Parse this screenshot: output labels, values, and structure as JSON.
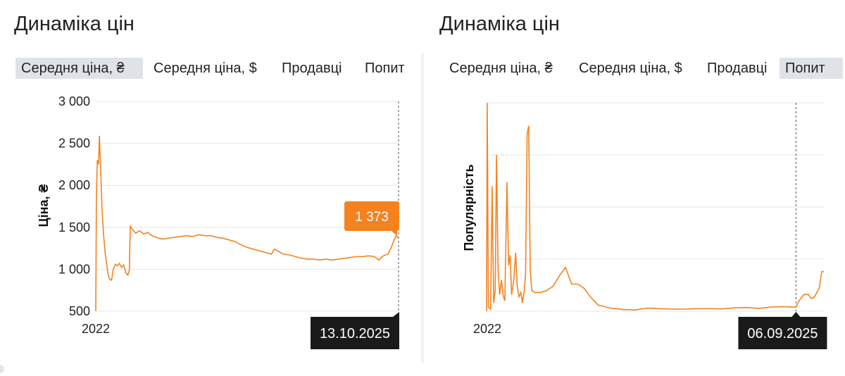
{
  "colors": {
    "line": "#f4821f",
    "tooltip_value_bg": "#f4821f",
    "tooltip_date_bg": "#1a1a1a",
    "grid": "#e6e6e6",
    "active_tab": "#dfe3e8"
  },
  "panels": [
    {
      "title": "Динаміка цін",
      "tabs": [
        {
          "label": "Середня ціна, ₴",
          "active": true
        },
        {
          "label": "Середня ціна, $",
          "active": false
        },
        {
          "label": "Продавці",
          "active": false
        },
        {
          "label": "Попит",
          "active": false
        }
      ]
    },
    {
      "title": "Динаміка цін",
      "tabs": [
        {
          "label": "Середня ціна, ₴",
          "active": false
        },
        {
          "label": "Середня ціна, $",
          "active": false
        },
        {
          "label": "Продавці",
          "active": false
        },
        {
          "label": "Попит",
          "active": true
        }
      ]
    }
  ],
  "chart_data": [
    {
      "type": "line",
      "title": "",
      "ylabel": "Ціна, ₴",
      "xlabel": "",
      "x_tick_labels": [
        "2022"
      ],
      "y_tick_labels": [
        "3 000",
        "2 500",
        "2 000",
        "1 500",
        "1 000",
        "500"
      ],
      "ylim": [
        500,
        3000
      ],
      "x_range": [
        "2022-01",
        "2025-10-13"
      ],
      "grid": true,
      "series": [
        {
          "values": [
            [
              0,
              500
            ],
            [
              0.2,
              1850
            ],
            [
              0.5,
              2300
            ],
            [
              0.9,
              2250
            ],
            [
              1.2,
              2590
            ],
            [
              1.6,
              2200
            ],
            [
              2.1,
              1700
            ],
            [
              2.6,
              1400
            ],
            [
              3.1,
              1200
            ],
            [
              3.6,
              1060
            ],
            [
              4.1,
              930
            ],
            [
              4.6,
              880
            ],
            [
              5.2,
              870
            ],
            [
              5.8,
              1000
            ],
            [
              6.5,
              1060
            ],
            [
              7.1,
              1040
            ],
            [
              7.8,
              1070
            ],
            [
              8.5,
              1020
            ],
            [
              9.2,
              1050
            ],
            [
              9.9,
              960
            ],
            [
              10.6,
              930
            ],
            [
              11.1,
              990
            ],
            [
              11.4,
              1510
            ],
            [
              12.2,
              1470
            ],
            [
              13.2,
              1430
            ],
            [
              14.5,
              1460
            ],
            [
              15.8,
              1420
            ],
            [
              17.2,
              1440
            ],
            [
              18.5,
              1400
            ],
            [
              20,
              1380
            ],
            [
              22,
              1360
            ],
            [
              24,
              1370
            ],
            [
              26,
              1380
            ],
            [
              28,
              1390
            ],
            [
              30,
              1400
            ],
            [
              32,
              1390
            ],
            [
              34,
              1410
            ],
            [
              36,
              1400
            ],
            [
              38,
              1400
            ],
            [
              40,
              1380
            ],
            [
              42,
              1370
            ],
            [
              44,
              1350
            ],
            [
              46,
              1330
            ],
            [
              48,
              1290
            ],
            [
              50,
              1260
            ],
            [
              52,
              1240
            ],
            [
              54,
              1220
            ],
            [
              56,
              1200
            ],
            [
              58,
              1180
            ],
            [
              59,
              1240
            ],
            [
              60,
              1220
            ],
            [
              62,
              1180
            ],
            [
              64,
              1170
            ],
            [
              66,
              1150
            ],
            [
              68,
              1130
            ],
            [
              70,
              1120
            ],
            [
              72,
              1120
            ],
            [
              74,
              1110
            ],
            [
              76,
              1120
            ],
            [
              78,
              1110
            ],
            [
              80,
              1120
            ],
            [
              82,
              1130
            ],
            [
              84,
              1140
            ],
            [
              86,
              1150
            ],
            [
              88,
              1150
            ],
            [
              90,
              1160
            ],
            [
              92,
              1150
            ],
            [
              93.5,
              1110
            ],
            [
              95,
              1160
            ],
            [
              96.5,
              1180
            ],
            [
              97.5,
              1250
            ],
            [
              98.3,
              1330
            ],
            [
              99.2,
              1400
            ],
            [
              100,
              1373
            ]
          ]
        }
      ],
      "tooltip": {
        "value": "1 373",
        "date": "13.10.2025"
      }
    },
    {
      "type": "line",
      "title": "",
      "ylabel": "Популярність",
      "xlabel": "",
      "x_tick_labels": [
        "2022"
      ],
      "y_tick_labels": [],
      "ylim": [
        0,
        100
      ],
      "x_range": [
        "2022-01",
        "2025-09-06"
      ],
      "grid": true,
      "series": [
        {
          "values": [
            [
              0,
              0
            ],
            [
              0.2,
              100
            ],
            [
              0.6,
              2
            ],
            [
              1.3,
              1
            ],
            [
              1.8,
              60
            ],
            [
              2.3,
              4
            ],
            [
              2.8,
              10
            ],
            [
              3.2,
              75
            ],
            [
              3.7,
              20
            ],
            [
              4.2,
              8
            ],
            [
              4.8,
              15
            ],
            [
              5.3,
              8
            ],
            [
              5.9,
              5
            ],
            [
              6.6,
              62
            ],
            [
              7.1,
              22
            ],
            [
              7.6,
              27
            ],
            [
              8.1,
              8
            ],
            [
              8.8,
              15
            ],
            [
              9.4,
              28
            ],
            [
              9.9,
              12
            ],
            [
              10.5,
              7
            ],
            [
              11.1,
              9
            ],
            [
              11.6,
              4
            ],
            [
              12.1,
              9
            ],
            [
              12.6,
              18
            ],
            [
              13.1,
              85
            ],
            [
              13.6,
              89
            ],
            [
              14.1,
              20
            ],
            [
              14.6,
              10
            ],
            [
              15.5,
              9
            ],
            [
              17.5,
              9
            ],
            [
              19.5,
              10
            ],
            [
              21.5,
              12
            ],
            [
              23.5,
              17
            ],
            [
              25.5,
              21
            ],
            [
              27.5,
              13
            ],
            [
              29.5,
              13
            ],
            [
              31.5,
              11
            ],
            [
              33.5,
              7
            ],
            [
              36,
              3
            ],
            [
              40,
              1.5
            ],
            [
              44,
              0.8
            ],
            [
              48,
              0.6
            ],
            [
              52,
              1.5
            ],
            [
              56,
              1.2
            ],
            [
              60,
              1.0
            ],
            [
              64,
              1.0
            ],
            [
              68,
              1.2
            ],
            [
              72,
              1.2
            ],
            [
              76,
              1.1
            ],
            [
              80,
              1.6
            ],
            [
              84,
              1.8
            ],
            [
              88,
              1.4
            ],
            [
              92,
              2.0
            ],
            [
              96,
              2.2
            ],
            [
              98,
              2.0
            ],
            [
              100,
              2.0
            ],
            [
              101,
              5
            ],
            [
              102.5,
              8
            ],
            [
              104,
              8
            ],
            [
              105,
              6
            ],
            [
              106,
              7
            ],
            [
              107.5,
              11
            ],
            [
              108.3,
              19
            ],
            [
              109,
              19
            ]
          ]
        }
      ],
      "tooltip": {
        "date": "06.09.2025"
      }
    }
  ]
}
